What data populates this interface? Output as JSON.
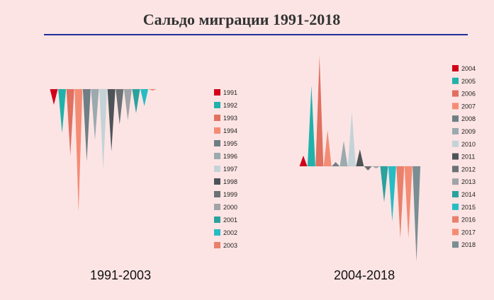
{
  "title": "Сальдо миграции 1991-2018",
  "colors": {
    "background": "#fde4e4",
    "rule": "#1f2f99"
  },
  "chart_data": [
    {
      "type": "bar",
      "variant": "triangle",
      "caption": "1991-2003",
      "categories": [
        "1991",
        "1992",
        "1993",
        "1994",
        "1995",
        "1996",
        "1997",
        "1998",
        "1999",
        "2000",
        "2001",
        "2002",
        "2003"
      ],
      "values": [
        -11,
        -31,
        -47,
        -87,
        -51,
        -36,
        -57,
        -44,
        -25,
        -22,
        -17,
        -12,
        -1
      ],
      "colors": [
        "#d0021b",
        "#20b2aa",
        "#e07060",
        "#f48c74",
        "#6e7e84",
        "#9aaaae",
        "#c3d3d8",
        "#4d5458",
        "#6b7174",
        "#a0a4a6",
        "#2aa29e",
        "#26bcc4",
        "#e8806c"
      ],
      "legend": "right",
      "y_unit": "relative"
    },
    {
      "type": "bar",
      "variant": "triangle",
      "caption": "2004-2018",
      "categories": [
        "2004",
        "2005",
        "2006",
        "2007",
        "2008",
        "2009",
        "2010",
        "2011",
        "2012",
        "2013",
        "2014",
        "2015",
        "2016",
        "2017",
        "2018"
      ],
      "values": [
        5,
        38,
        52,
        17,
        2,
        12,
        26,
        8,
        -2,
        -1,
        -17,
        -26,
        -34,
        -34,
        -45
      ],
      "colors": [
        "#d0021b",
        "#20b2aa",
        "#e07060",
        "#f48c74",
        "#6e7e84",
        "#9aaaae",
        "#c3d3d8",
        "#4d5458",
        "#6b7174",
        "#a0a4a6",
        "#2aa29e",
        "#26bcc4",
        "#e8806c",
        "#f48c74",
        "#7a8e92"
      ],
      "legend": "right",
      "y_unit": "relative"
    }
  ]
}
